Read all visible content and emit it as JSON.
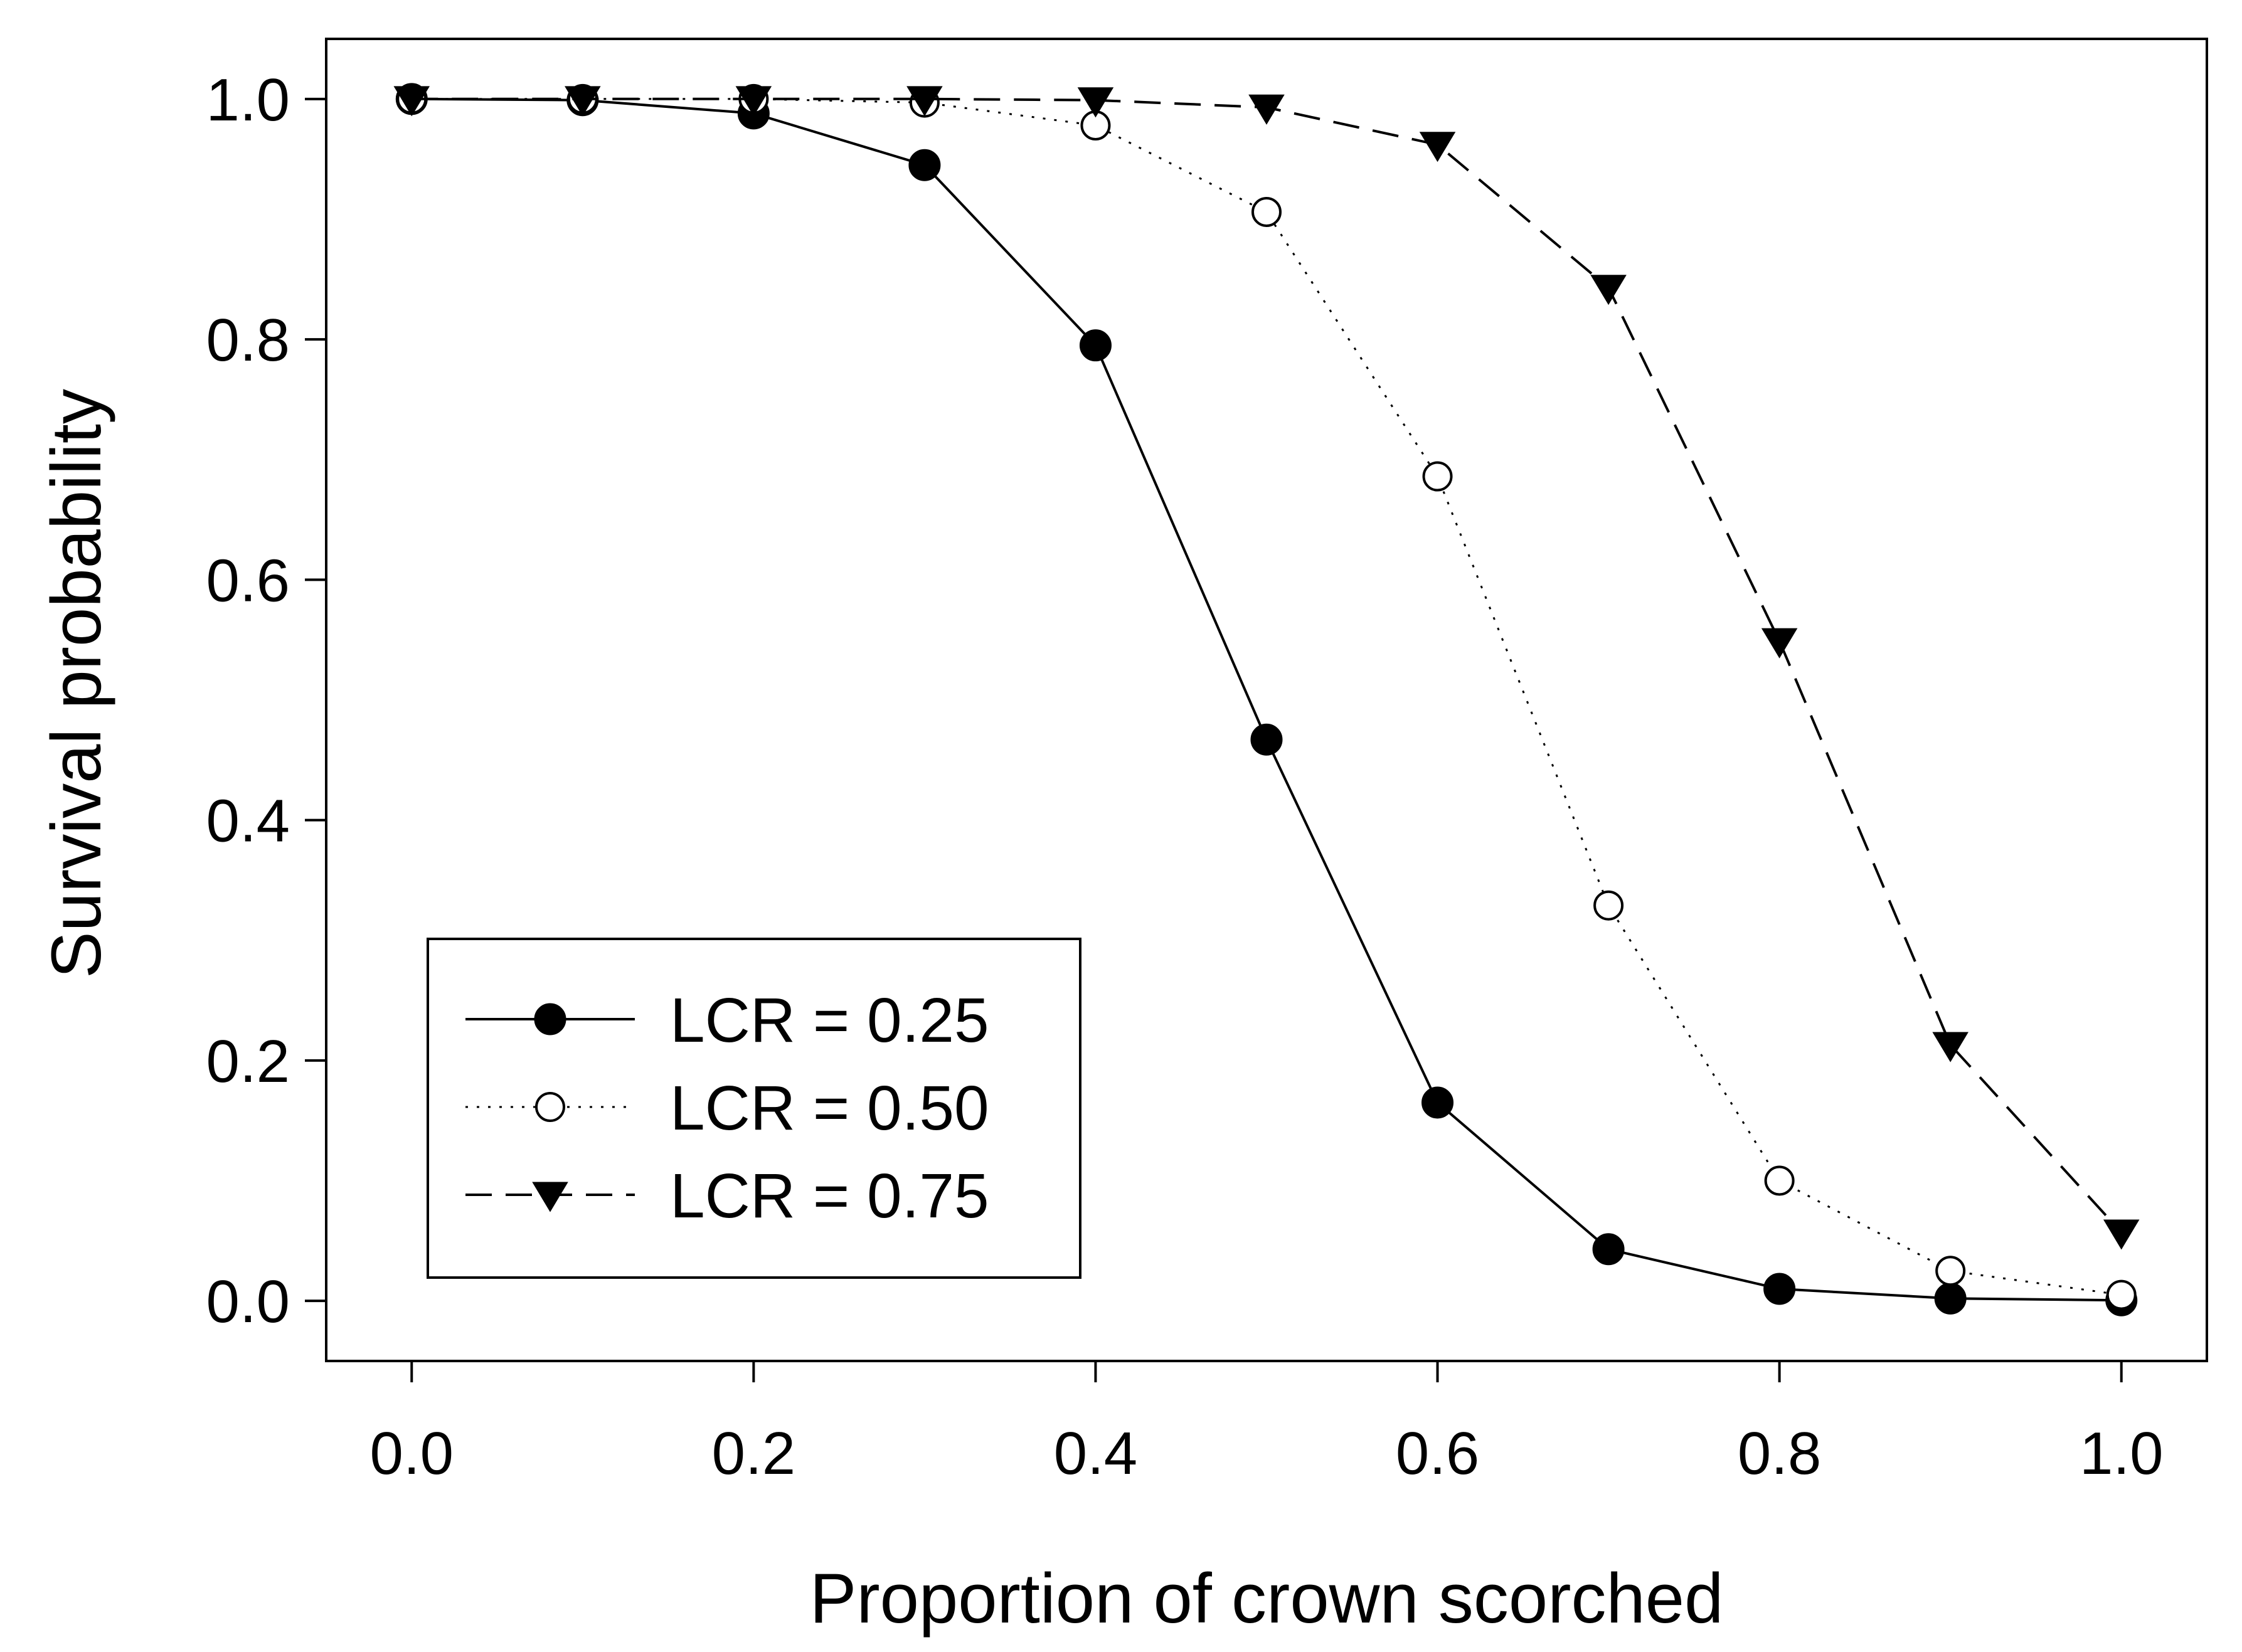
{
  "chart_data": {
    "type": "line",
    "title": "",
    "xlabel": "Proportion of crown scorched",
    "ylabel": "Survival probability",
    "xlim": [
      -0.05,
      1.05
    ],
    "ylim": [
      -0.05,
      1.05
    ],
    "x_ticks": [
      0.0,
      0.2,
      0.4,
      0.6,
      0.8,
      1.0
    ],
    "y_ticks": [
      0.0,
      0.2,
      0.4,
      0.6,
      0.8,
      1.0
    ],
    "x_tick_labels": [
      "0.0",
      "0.2",
      "0.4",
      "0.6",
      "0.8",
      "1.0"
    ],
    "y_tick_labels": [
      "0.0",
      "0.2",
      "0.4",
      "0.6",
      "0.8",
      "1.0"
    ],
    "grid": false,
    "legend_position": "bottom-left",
    "x": [
      0.0,
      0.1,
      0.2,
      0.3,
      0.4,
      0.5,
      0.6,
      0.7,
      0.8,
      0.9,
      1.0
    ],
    "series": [
      {
        "name": "LCR = 0.25",
        "line_style": "solid",
        "marker": "filled-circle",
        "values": [
          1.0,
          0.999,
          0.988,
          0.945,
          0.795,
          0.467,
          0.165,
          0.043,
          0.01,
          0.002,
          0.0005
        ]
      },
      {
        "name": "LCR = 0.50",
        "line_style": "dotted",
        "marker": "open-circle",
        "values": [
          1.0,
          1.0,
          1.0,
          0.997,
          0.978,
          0.906,
          0.686,
          0.329,
          0.1,
          0.025,
          0.005
        ]
      },
      {
        "name": "LCR = 0.75",
        "line_style": "dashed",
        "marker": "filled-triangle-down",
        "values": [
          1.0,
          1.0,
          1.0,
          1.0,
          0.999,
          0.993,
          0.962,
          0.843,
          0.549,
          0.213,
          0.057
        ]
      }
    ]
  }
}
